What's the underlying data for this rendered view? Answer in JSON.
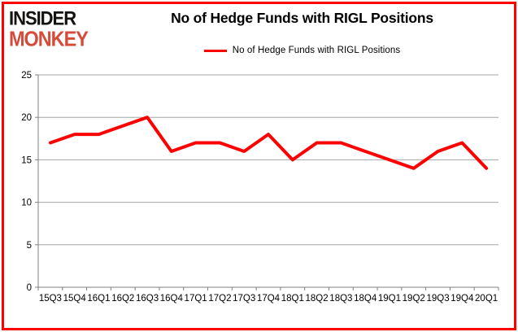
{
  "logo": {
    "line1": "INSIDER",
    "line2": "MONKEY"
  },
  "header": {
    "title": "No of Hedge Funds with RIGL Positions"
  },
  "legend": {
    "label": "No of Hedge Funds with RIGL Positions",
    "swatch_color": "#fe0000"
  },
  "colors": {
    "frame": "#fe0000",
    "series_line": "#fe0000",
    "gridline": "#a6a6a6",
    "axis": "#808080",
    "text": "#000000",
    "logo_black": "#151312",
    "logo_red": "#d54b3a",
    "background": "#ffffff"
  },
  "chart_data": {
    "type": "line",
    "title": "No of Hedge Funds with RIGL Positions",
    "categories": [
      "15Q3",
      "15Q4",
      "16Q1",
      "16Q2",
      "16Q3",
      "16Q4",
      "17Q1",
      "17Q2",
      "17Q3",
      "17Q4",
      "18Q1",
      "18Q2",
      "18Q3",
      "18Q4",
      "19Q1",
      "19Q2",
      "19Q3",
      "19Q4",
      "20Q1"
    ],
    "series": [
      {
        "name": "No of Hedge Funds with RIGL Positions",
        "color": "#fe0000",
        "values": [
          17,
          18,
          18,
          19,
          20,
          16,
          17,
          17,
          16,
          18,
          15,
          17,
          17,
          16,
          15,
          14,
          16,
          17,
          14
        ]
      }
    ],
    "xlabel": "",
    "ylabel": "",
    "ylim": [
      0,
      25
    ],
    "yticks": [
      0,
      5,
      10,
      15,
      20,
      25
    ],
    "grid": "horizontal",
    "legend_position": "top-center",
    "markers": false
  }
}
